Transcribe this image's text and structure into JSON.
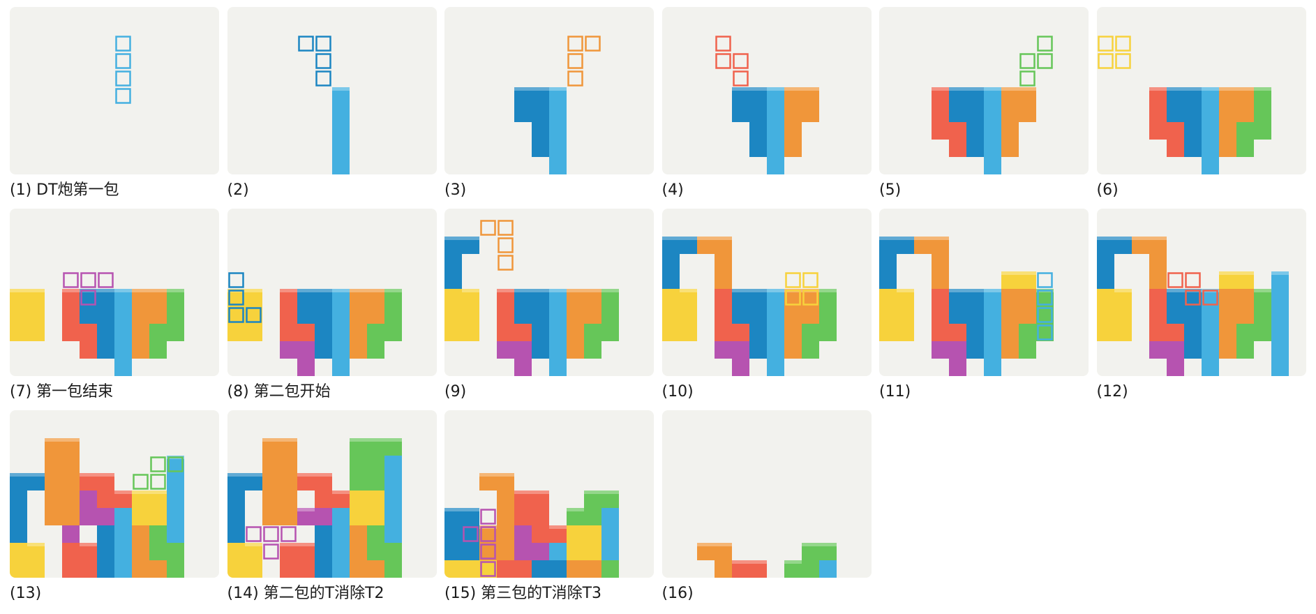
{
  "colors": {
    "Z": "#f0624d",
    "L": "#f0963a",
    "O": "#f7d23c",
    "S": "#66c659",
    "I": "#44b0e0",
    "J": "#1c86c2",
    "T": "#b653b0",
    "board_bg": "#f2f2ee"
  },
  "board": {
    "cols": 12,
    "rows": 10
  },
  "frames": [
    {
      "caption": "(1) DT炮第一包",
      "cells": [],
      "ghost": [
        [
          6,
          4,
          "I"
        ],
        [
          6,
          5,
          "I"
        ],
        [
          6,
          6,
          "I"
        ],
        [
          6,
          7,
          "I"
        ]
      ]
    },
    {
      "caption": "(2)",
      "cells": [
        [
          6,
          0,
          "I"
        ],
        [
          6,
          1,
          "I"
        ],
        [
          6,
          2,
          "I"
        ],
        [
          6,
          3,
          "I"
        ],
        [
          6,
          4,
          "I"
        ]
      ],
      "ghost": [
        [
          5,
          5,
          "J"
        ],
        [
          5,
          6,
          "J"
        ],
        [
          4,
          7,
          "J"
        ],
        [
          5,
          7,
          "J"
        ]
      ]
    },
    {
      "caption": "(3)",
      "cells": [
        [
          6,
          0,
          "I"
        ],
        [
          6,
          1,
          "I"
        ],
        [
          6,
          2,
          "I"
        ],
        [
          6,
          3,
          "I"
        ],
        [
          6,
          4,
          "I"
        ],
        [
          5,
          1,
          "J"
        ],
        [
          5,
          2,
          "J"
        ],
        [
          5,
          3,
          "J"
        ],
        [
          4,
          3,
          "J"
        ],
        [
          5,
          4,
          "J"
        ],
        [
          4,
          4,
          "J"
        ]
      ],
      "ghost": [
        [
          7,
          5,
          "L"
        ],
        [
          7,
          6,
          "L"
        ],
        [
          7,
          7,
          "L"
        ],
        [
          8,
          7,
          "L"
        ]
      ]
    },
    {
      "caption": "(4)",
      "cells": [
        [
          6,
          0,
          "I"
        ],
        [
          6,
          1,
          "I"
        ],
        [
          6,
          2,
          "I"
        ],
        [
          6,
          3,
          "I"
        ],
        [
          6,
          4,
          "I"
        ],
        [
          5,
          1,
          "J"
        ],
        [
          5,
          2,
          "J"
        ],
        [
          5,
          3,
          "J"
        ],
        [
          4,
          3,
          "J"
        ],
        [
          5,
          4,
          "J"
        ],
        [
          4,
          4,
          "J"
        ],
        [
          7,
          1,
          "L"
        ],
        [
          7,
          2,
          "L"
        ],
        [
          7,
          3,
          "L"
        ],
        [
          7,
          4,
          "L"
        ],
        [
          8,
          3,
          "L"
        ],
        [
          8,
          4,
          "L"
        ]
      ],
      "ghost": [
        [
          4,
          5,
          "Z"
        ],
        [
          3,
          6,
          "Z"
        ],
        [
          4,
          6,
          "Z"
        ],
        [
          3,
          7,
          "Z"
        ]
      ]
    },
    {
      "caption": "(5)",
      "cells": [
        [
          6,
          0,
          "I"
        ],
        [
          6,
          1,
          "I"
        ],
        [
          6,
          2,
          "I"
        ],
        [
          6,
          3,
          "I"
        ],
        [
          6,
          4,
          "I"
        ],
        [
          5,
          1,
          "J"
        ],
        [
          5,
          2,
          "J"
        ],
        [
          5,
          3,
          "J"
        ],
        [
          4,
          3,
          "J"
        ],
        [
          5,
          4,
          "J"
        ],
        [
          4,
          4,
          "J"
        ],
        [
          7,
          1,
          "L"
        ],
        [
          7,
          2,
          "L"
        ],
        [
          7,
          3,
          "L"
        ],
        [
          7,
          4,
          "L"
        ],
        [
          8,
          3,
          "L"
        ],
        [
          8,
          4,
          "L"
        ],
        [
          4,
          1,
          "Z"
        ],
        [
          4,
          2,
          "Z"
        ],
        [
          3,
          2,
          "Z"
        ],
        [
          3,
          3,
          "Z"
        ],
        [
          3,
          4,
          "Z"
        ]
      ],
      "ghost": [
        [
          8,
          5,
          "S"
        ],
        [
          8,
          6,
          "S"
        ],
        [
          9,
          6,
          "S"
        ],
        [
          9,
          7,
          "S"
        ]
      ]
    },
    {
      "caption": "(6)",
      "cells": [
        [
          6,
          0,
          "I"
        ],
        [
          6,
          1,
          "I"
        ],
        [
          6,
          2,
          "I"
        ],
        [
          6,
          3,
          "I"
        ],
        [
          6,
          4,
          "I"
        ],
        [
          5,
          1,
          "J"
        ],
        [
          5,
          2,
          "J"
        ],
        [
          5,
          3,
          "J"
        ],
        [
          4,
          3,
          "J"
        ],
        [
          5,
          4,
          "J"
        ],
        [
          4,
          4,
          "J"
        ],
        [
          7,
          1,
          "L"
        ],
        [
          7,
          2,
          "L"
        ],
        [
          7,
          3,
          "L"
        ],
        [
          7,
          4,
          "L"
        ],
        [
          8,
          3,
          "L"
        ],
        [
          8,
          4,
          "L"
        ],
        [
          4,
          1,
          "Z"
        ],
        [
          4,
          2,
          "Z"
        ],
        [
          3,
          2,
          "Z"
        ],
        [
          3,
          3,
          "Z"
        ],
        [
          3,
          4,
          "Z"
        ],
        [
          8,
          1,
          "S"
        ],
        [
          8,
          2,
          "S"
        ],
        [
          9,
          2,
          "S"
        ],
        [
          8,
          3,
          "S"
        ],
        [
          9,
          3,
          "S"
        ],
        [
          9,
          4,
          "S"
        ]
      ],
      "ghost": [
        [
          0,
          6,
          "O"
        ],
        [
          1,
          6,
          "O"
        ],
        [
          0,
          7,
          "O"
        ],
        [
          1,
          7,
          "O"
        ]
      ]
    },
    {
      "caption": "(7) 第一包结束",
      "cells": [
        [
          0,
          2,
          "O"
        ],
        [
          1,
          2,
          "O"
        ],
        [
          0,
          3,
          "O"
        ],
        [
          1,
          3,
          "O"
        ],
        [
          0,
          4,
          "O"
        ],
        [
          1,
          4,
          "O"
        ],
        [
          6,
          0,
          "I"
        ],
        [
          6,
          1,
          "I"
        ],
        [
          6,
          2,
          "I"
        ],
        [
          6,
          3,
          "I"
        ],
        [
          6,
          4,
          "I"
        ],
        [
          5,
          1,
          "J"
        ],
        [
          5,
          2,
          "J"
        ],
        [
          5,
          3,
          "J"
        ],
        [
          4,
          3,
          "J"
        ],
        [
          5,
          4,
          "J"
        ],
        [
          4,
          4,
          "J"
        ],
        [
          7,
          1,
          "L"
        ],
        [
          7,
          2,
          "L"
        ],
        [
          7,
          3,
          "L"
        ],
        [
          7,
          4,
          "L"
        ],
        [
          8,
          3,
          "L"
        ],
        [
          8,
          4,
          "L"
        ],
        [
          4,
          1,
          "Z"
        ],
        [
          4,
          2,
          "Z"
        ],
        [
          3,
          2,
          "Z"
        ],
        [
          3,
          3,
          "Z"
        ],
        [
          3,
          4,
          "Z"
        ],
        [
          8,
          1,
          "S"
        ],
        [
          8,
          2,
          "S"
        ],
        [
          9,
          2,
          "S"
        ],
        [
          8,
          3,
          "S"
        ],
        [
          9,
          3,
          "S"
        ],
        [
          9,
          4,
          "S"
        ]
      ],
      "ghost": [
        [
          4,
          4,
          "T"
        ],
        [
          3,
          5,
          "T"
        ],
        [
          4,
          5,
          "T"
        ],
        [
          5,
          5,
          "T"
        ]
      ]
    },
    {
      "caption": "(8) 第二包开始",
      "cells": [
        [
          0,
          2,
          "O"
        ],
        [
          1,
          2,
          "O"
        ],
        [
          0,
          3,
          "O"
        ],
        [
          1,
          3,
          "O"
        ],
        [
          0,
          4,
          "O"
        ],
        [
          1,
          4,
          "O"
        ],
        [
          6,
          0,
          "I"
        ],
        [
          6,
          1,
          "I"
        ],
        [
          6,
          2,
          "I"
        ],
        [
          6,
          3,
          "I"
        ],
        [
          6,
          4,
          "I"
        ],
        [
          5,
          1,
          "J"
        ],
        [
          5,
          2,
          "J"
        ],
        [
          5,
          3,
          "J"
        ],
        [
          4,
          3,
          "J"
        ],
        [
          5,
          4,
          "J"
        ],
        [
          4,
          4,
          "J"
        ],
        [
          7,
          1,
          "L"
        ],
        [
          7,
          2,
          "L"
        ],
        [
          7,
          3,
          "L"
        ],
        [
          7,
          4,
          "L"
        ],
        [
          8,
          3,
          "L"
        ],
        [
          8,
          4,
          "L"
        ],
        [
          3,
          2,
          "Z"
        ],
        [
          3,
          3,
          "Z"
        ],
        [
          3,
          4,
          "Z"
        ],
        [
          4,
          2,
          "Z"
        ],
        [
          8,
          1,
          "S"
        ],
        [
          8,
          2,
          "S"
        ],
        [
          9,
          2,
          "S"
        ],
        [
          8,
          3,
          "S"
        ],
        [
          9,
          3,
          "S"
        ],
        [
          9,
          4,
          "S"
        ],
        [
          4,
          0,
          "T"
        ],
        [
          4,
          1,
          "T"
        ],
        [
          3,
          1,
          "T"
        ],
        [
          5,
          1,
          "T"
        ]
      ],
      "ghost": [
        [
          0,
          3,
          "J"
        ],
        [
          1,
          3,
          "J"
        ],
        [
          0,
          4,
          "J"
        ],
        [
          0,
          5,
          "J"
        ]
      ]
    },
    {
      "caption": "(9)",
      "cells": [
        [
          0,
          2,
          "O"
        ],
        [
          1,
          2,
          "O"
        ],
        [
          0,
          3,
          "O"
        ],
        [
          1,
          3,
          "O"
        ],
        [
          0,
          4,
          "O"
        ],
        [
          1,
          4,
          "O"
        ],
        [
          0,
          5,
          "J"
        ],
        [
          0,
          6,
          "J"
        ],
        [
          0,
          7,
          "J"
        ],
        [
          1,
          7,
          "J"
        ],
        [
          6,
          0,
          "I"
        ],
        [
          6,
          1,
          "I"
        ],
        [
          6,
          2,
          "I"
        ],
        [
          6,
          3,
          "I"
        ],
        [
          6,
          4,
          "I"
        ],
        [
          5,
          1,
          "J"
        ],
        [
          5,
          2,
          "J"
        ],
        [
          5,
          3,
          "J"
        ],
        [
          4,
          3,
          "J"
        ],
        [
          5,
          4,
          "J"
        ],
        [
          4,
          4,
          "J"
        ],
        [
          7,
          1,
          "L"
        ],
        [
          7,
          2,
          "L"
        ],
        [
          7,
          3,
          "L"
        ],
        [
          7,
          4,
          "L"
        ],
        [
          8,
          3,
          "L"
        ],
        [
          8,
          4,
          "L"
        ],
        [
          3,
          2,
          "Z"
        ],
        [
          3,
          3,
          "Z"
        ],
        [
          3,
          4,
          "Z"
        ],
        [
          4,
          2,
          "Z"
        ],
        [
          8,
          1,
          "S"
        ],
        [
          8,
          2,
          "S"
        ],
        [
          9,
          2,
          "S"
        ],
        [
          8,
          3,
          "S"
        ],
        [
          9,
          3,
          "S"
        ],
        [
          9,
          4,
          "S"
        ],
        [
          4,
          0,
          "T"
        ],
        [
          4,
          1,
          "T"
        ],
        [
          3,
          1,
          "T"
        ],
        [
          5,
          1,
          "T"
        ]
      ],
      "ghost": [
        [
          2,
          8,
          "L"
        ],
        [
          3,
          8,
          "L"
        ],
        [
          3,
          7,
          "L"
        ],
        [
          3,
          6,
          "L"
        ]
      ]
    },
    {
      "caption": "(10)",
      "cells": [],
      "ghost": []
    },
    {
      "caption": "(11)",
      "cells": [],
      "ghost": []
    },
    {
      "caption": "(12)",
      "cells": [],
      "ghost": []
    },
    {
      "caption": "(13)",
      "cells": [],
      "ghost": []
    },
    {
      "caption": "(14) 第二包的T消除T2",
      "cells": [],
      "ghost": []
    },
    {
      "caption": "(15) 第三包的T消除T3",
      "cells": [],
      "ghost": []
    },
    {
      "caption": "(16)",
      "cells": [
        [
          2,
          1,
          "L"
        ],
        [
          3,
          1,
          "L"
        ],
        [
          3,
          0,
          "L"
        ],
        [
          4,
          0,
          "Z"
        ],
        [
          5,
          0,
          "Z"
        ],
        [
          7,
          0,
          "S"
        ],
        [
          8,
          0,
          "S"
        ],
        [
          8,
          1,
          "S"
        ],
        [
          9,
          1,
          "S"
        ],
        [
          9,
          0,
          "I"
        ]
      ],
      "ghost": []
    }
  ]
}
